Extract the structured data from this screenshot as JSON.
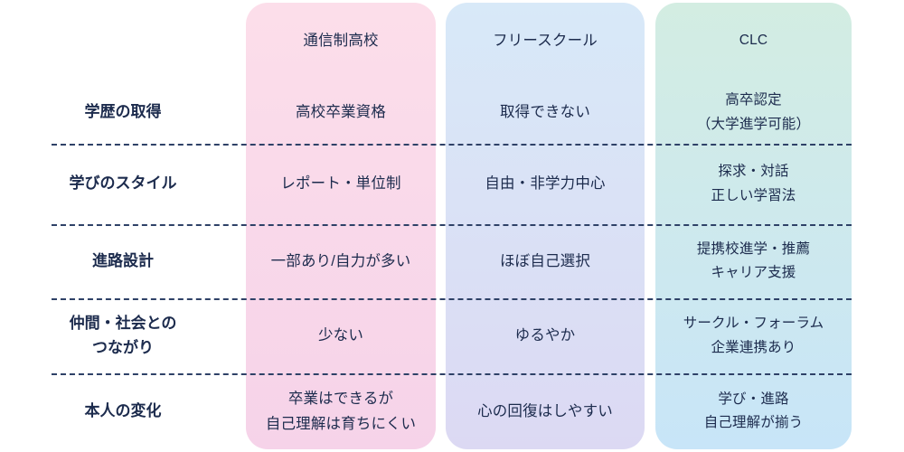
{
  "table": {
    "text_color": "#1c2b4d",
    "divider_color": "#2e4167",
    "background": "#ffffff",
    "columns": [
      {
        "header": "通信制高校",
        "gradient_from": "#fcdeea",
        "gradient_to": "#f6d3e9"
      },
      {
        "header": "フリースクール",
        "gradient_from": "#d8e9f8",
        "gradient_to": "#dcd9f3"
      },
      {
        "header": "CLC",
        "gradient_from": "#d3ede2",
        "gradient_to": "#c8e5f8"
      }
    ],
    "rows": [
      {
        "label": "学歴の取得",
        "cells": [
          "高校卒業資格",
          "取得できない",
          "高卒認定\n（大学進学可能）"
        ]
      },
      {
        "label": "学びのスタイル",
        "cells": [
          "レポート・単位制",
          "自由・非学力中心",
          "探求・対話\n正しい学習法"
        ]
      },
      {
        "label": "進路設計",
        "cells": [
          "一部あり/自力が多い",
          "ほぼ自己選択",
          "提携校進学・推薦\nキャリア支援"
        ]
      },
      {
        "label": "仲間・社会との\nつながり",
        "cells": [
          "少ない",
          "ゆるやか",
          "サークル・フォーラム\n企業連携あり"
        ]
      },
      {
        "label": "本人の変化",
        "cells": [
          "卒業はできるが\n自己理解は育ちにくい",
          "心の回復はしやすい",
          "学び・進路\n自己理解が揃う"
        ]
      }
    ]
  }
}
